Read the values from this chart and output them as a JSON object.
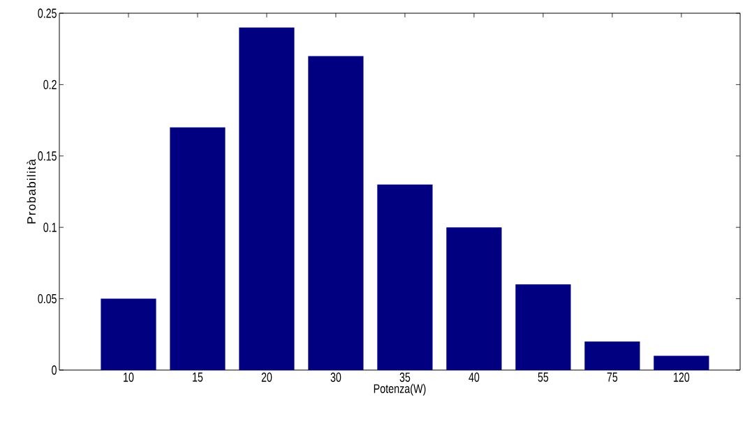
{
  "chart_data": {
    "type": "bar",
    "xlabel": "Potenza(W)",
    "ylabel": "Probabilità",
    "categories": [
      "10",
      "15",
      "20",
      "30",
      "35",
      "40",
      "55",
      "75",
      "120"
    ],
    "values": [
      0.05,
      0.17,
      0.24,
      0.22,
      0.13,
      0.1,
      0.06,
      0.02,
      0.01
    ],
    "color": "#000080",
    "ylim": [
      0,
      0.25
    ],
    "yticks": [
      0,
      0.05,
      0.1,
      0.15,
      0.2,
      0.25
    ],
    "grid": false
  }
}
